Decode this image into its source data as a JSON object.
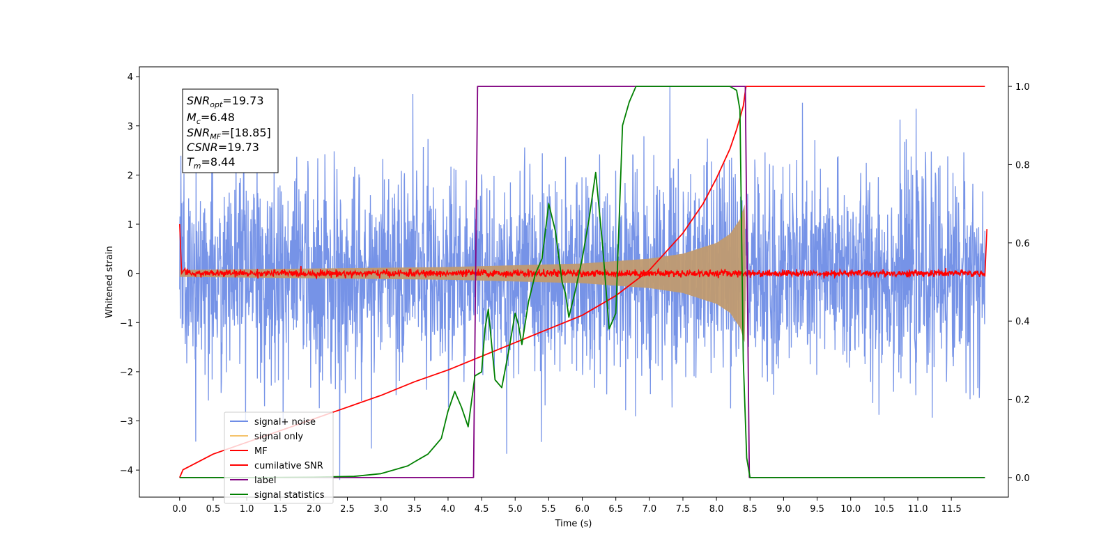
{
  "chart_data": {
    "type": "line",
    "title": "",
    "xlabel": "Time (s)",
    "ylabel": "Whitened strain",
    "xlim": [
      -0.6,
      12.35
    ],
    "ylim": [
      -4.55,
      4.2
    ],
    "y2lim": [
      -0.05,
      1.05
    ],
    "x_ticks": [
      "0.0",
      "0.5",
      "1.0",
      "1.5",
      "2.0",
      "2.5",
      "3.0",
      "3.5",
      "4.0",
      "4.5",
      "5.0",
      "5.5",
      "6.0",
      "6.5",
      "7.0",
      "7.5",
      "8.0",
      "8.5",
      "9.0",
      "9.5",
      "10.0",
      "10.5",
      "11.0",
      "11.5"
    ],
    "y_ticks": [
      "4",
      "3",
      "2",
      "1",
      "0",
      "-1",
      "-2",
      "-3",
      "-4"
    ],
    "y2_ticks": [
      "1.0",
      "0.8",
      "0.6",
      "0.4",
      "0.2",
      "0.0"
    ],
    "grid": false,
    "legend_position": "lower-left",
    "annotation": {
      "snr_opt": "=19.73",
      "mc": "=6.48",
      "snr_mf": "=[18.85]",
      "csnr": "=19.73",
      "tm": "=8.44"
    },
    "series": [
      {
        "name": "signal+ noise",
        "color": "#6f8de6",
        "axis": "left",
        "description_x_range": [
          0,
          12.0
        ],
        "amplitude_range": [
          -4.2,
          3.8
        ]
      },
      {
        "name": "signal only",
        "color": "#f5c36b",
        "axis": "left",
        "envelope": {
          "x": [
            0,
            2,
            4,
            6,
            7,
            7.5,
            8.0,
            8.2,
            8.35,
            8.42,
            8.44
          ],
          "amp": [
            0.07,
            0.1,
            0.13,
            0.2,
            0.3,
            0.4,
            0.62,
            0.8,
            1.1,
            1.4,
            0
          ]
        }
      },
      {
        "name": "MF",
        "color": "#ff0000",
        "axis": "left",
        "x": [
          0,
          0.03,
          0.08,
          12.0,
          12.03
        ],
        "y": [
          1.0,
          0.0,
          0.0,
          0.0,
          0.9
        ]
      },
      {
        "name": "cumilative SNR",
        "color": "#ff0000",
        "axis": "right",
        "x": [
          0,
          0.05,
          0.5,
          1.0,
          1.5,
          2.0,
          2.5,
          3.0,
          3.5,
          4.0,
          4.5,
          5.0,
          5.5,
          6.0,
          6.5,
          7.0,
          7.5,
          7.8,
          8.0,
          8.2,
          8.3,
          8.4,
          8.44,
          12.0
        ],
        "y": [
          0.0,
          0.02,
          0.06,
          0.09,
          0.12,
          0.15,
          0.18,
          0.21,
          0.245,
          0.275,
          0.31,
          0.345,
          0.38,
          0.415,
          0.465,
          0.53,
          0.625,
          0.7,
          0.765,
          0.84,
          0.89,
          0.95,
          1.0,
          1.0
        ]
      },
      {
        "name": "label",
        "color": "#800080",
        "axis": "right",
        "x": [
          0,
          4.38,
          4.44,
          8.43,
          8.49,
          12.0
        ],
        "y": [
          0.0,
          0.0,
          1.0,
          1.0,
          0.0,
          0.0
        ]
      },
      {
        "name": "signal statistics",
        "color": "#008000",
        "axis": "right",
        "x": [
          0,
          1.0,
          2.0,
          2.6,
          3.0,
          3.2,
          3.4,
          3.5,
          3.6,
          3.7,
          3.8,
          3.9,
          4.0,
          4.1,
          4.2,
          4.3,
          4.4,
          4.5,
          4.55,
          4.6,
          4.7,
          4.8,
          4.9,
          5.0,
          5.05,
          5.1,
          5.2,
          5.3,
          5.4,
          5.5,
          5.6,
          5.7,
          5.75,
          5.8,
          5.9,
          6.0,
          6.1,
          6.2,
          6.3,
          6.4,
          6.5,
          6.6,
          6.7,
          6.8,
          7.0,
          7.5,
          8.0,
          8.2,
          8.3,
          8.35,
          8.4,
          8.45,
          8.5,
          12.0
        ],
        "y": [
          0.0,
          0.0,
          0.001,
          0.003,
          0.01,
          0.02,
          0.03,
          0.04,
          0.05,
          0.06,
          0.08,
          0.1,
          0.17,
          0.22,
          0.18,
          0.13,
          0.26,
          0.27,
          0.38,
          0.43,
          0.25,
          0.23,
          0.32,
          0.42,
          0.39,
          0.34,
          0.45,
          0.52,
          0.56,
          0.7,
          0.63,
          0.5,
          0.47,
          0.41,
          0.48,
          0.56,
          0.66,
          0.78,
          0.6,
          0.38,
          0.42,
          0.9,
          0.96,
          1.0,
          1.0,
          1.0,
          1.0,
          1.0,
          0.99,
          0.94,
          0.3,
          0.05,
          0.0,
          0.0
        ]
      }
    ]
  }
}
